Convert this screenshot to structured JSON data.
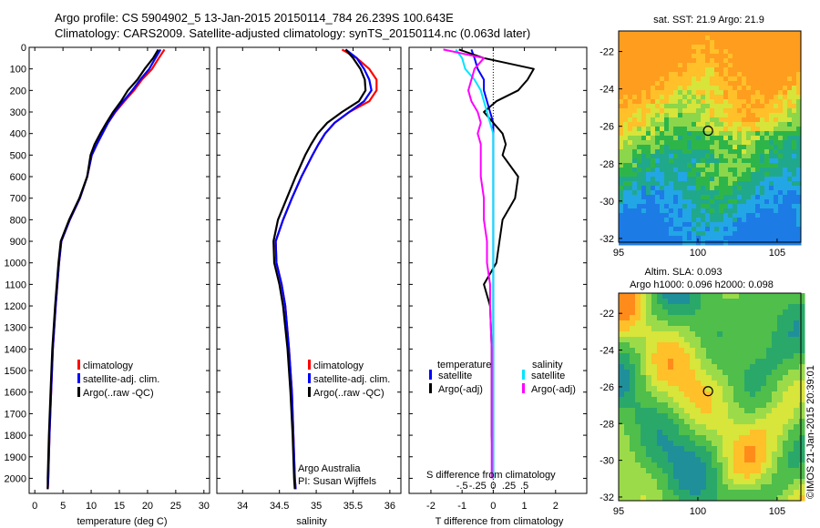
{
  "header": {
    "line1": "Argo profile: CS 5904902_5 13-Jan-2015 20150114_784 26.239S 100.643E",
    "line2": "Climatology: CARS2009. Satellite-adjusted climatology: synTS_20150114.nc (0.063d later)"
  },
  "colors": {
    "climatology": "#ff0000",
    "satellite": "#0000ff",
    "argo": "#000000",
    "sal_satellite": "#00e5ff",
    "sal_argo": "#ff00ff"
  },
  "panels": {
    "temperature": {
      "xlabel": "temperature (deg C)",
      "legend": [
        "climatology",
        "satellite-adj. clim.",
        "Argo(..raw -QC)"
      ]
    },
    "salinity": {
      "xlabel": "salinity",
      "legend": [
        "climatology",
        "satellite-adj. clim.",
        "Argo(..raw -QC)"
      ],
      "credit1": "Argo Australia",
      "credit2": "PI: Susan Wijffels"
    },
    "difference": {
      "xlabel": "T difference from climatology",
      "top_axis_title": "S difference from climatology",
      "legend_temp_title": "temperature",
      "legend_sal_title": "salinity",
      "legend_temp": [
        "satellite",
        "Argo(-adj)"
      ],
      "legend_sal": [
        "satellite",
        "Argo(-adj)"
      ]
    },
    "sst_map": {
      "title": "sat. SST: 21.9 Argo: 21.9"
    },
    "sla_map": {
      "title1": "Altim. SLA: 0.093",
      "title2": "Argo h1000: 0.096 h2000: 0.098"
    },
    "side_stamp": "©IMOS 21-Jan-2015 20:39:01"
  },
  "chart_data": [
    {
      "type": "line",
      "name": "temperature profile",
      "xlabel": "temperature (deg C)",
      "ylabel": "",
      "xlim": [
        -1,
        31
      ],
      "ylim": [
        2070,
        0
      ],
      "xticks": [
        0,
        5,
        10,
        15,
        20,
        25,
        30
      ],
      "yticks": [
        0,
        100,
        200,
        300,
        400,
        500,
        600,
        700,
        800,
        900,
        1000,
        1100,
        1200,
        1300,
        1400,
        1500,
        1600,
        1700,
        1800,
        1900,
        2000
      ],
      "depth": [
        10,
        50,
        100,
        150,
        200,
        250,
        300,
        350,
        400,
        450,
        500,
        600,
        700,
        800,
        900,
        1000,
        1200,
        1400,
        1600,
        1800,
        2000,
        2050
      ],
      "series": [
        {
          "name": "climatology",
          "color": "#ff0000",
          "x": [
            23.0,
            22.0,
            20.8,
            19.0,
            17.6,
            15.9,
            14.3,
            13.0,
            12.0,
            11.0,
            10.1,
            9.3,
            8.0,
            6.2,
            4.7,
            4.3,
            3.7,
            3.2,
            2.9,
            2.6,
            2.4,
            2.3
          ]
        },
        {
          "name": "satellite-adj. clim.",
          "color": "#0000ff",
          "x": [
            22.3,
            21.4,
            20.3,
            18.7,
            17.3,
            15.7,
            14.2,
            13.0,
            12.0,
            11.0,
            10.1,
            9.3,
            8.0,
            6.2,
            4.7,
            4.3,
            3.7,
            3.2,
            2.9,
            2.6,
            2.4,
            2.3
          ]
        },
        {
          "name": "Argo(..raw -QC)",
          "color": "#000000",
          "x": [
            21.9,
            21.0,
            19.5,
            18.2,
            16.5,
            15.3,
            13.9,
            12.7,
            11.6,
            10.6,
            9.9,
            9.3,
            7.9,
            6.1,
            4.6,
            4.2,
            3.6,
            3.1,
            2.8,
            2.5,
            2.3,
            2.3
          ]
        }
      ]
    },
    {
      "type": "line",
      "name": "salinity profile",
      "xlabel": "salinity",
      "ylabel": "",
      "xlim": [
        33.65,
        36.15
      ],
      "ylim": [
        2070,
        0
      ],
      "xticks": [
        34,
        34.5,
        35,
        35.5,
        36
      ],
      "depth": [
        10,
        50,
        100,
        150,
        200,
        250,
        300,
        350,
        400,
        450,
        500,
        600,
        700,
        800,
        900,
        1000,
        1100,
        1200,
        1400,
        1600,
        1800,
        2000,
        2050
      ],
      "series": [
        {
          "name": "climatology",
          "color": "#ff0000",
          "x": [
            35.35,
            35.55,
            35.72,
            35.82,
            35.82,
            35.72,
            35.45,
            35.25,
            35.12,
            35.03,
            34.95,
            34.8,
            34.67,
            34.55,
            34.45,
            34.46,
            34.53,
            34.58,
            34.63,
            34.67,
            34.69,
            34.71,
            34.72
          ]
        },
        {
          "name": "satellite-adj. clim.",
          "color": "#0000ff",
          "x": [
            35.4,
            35.55,
            35.65,
            35.72,
            35.75,
            35.65,
            35.45,
            35.25,
            35.12,
            35.03,
            34.95,
            34.8,
            34.67,
            34.55,
            34.45,
            34.46,
            34.53,
            34.58,
            34.63,
            34.67,
            34.69,
            34.71,
            34.72
          ]
        },
        {
          "name": "Argo(..raw -QC)",
          "color": "#000000",
          "x": [
            35.4,
            35.5,
            35.6,
            35.66,
            35.67,
            35.58,
            35.35,
            35.15,
            35.02,
            34.93,
            34.85,
            34.72,
            34.6,
            34.48,
            34.42,
            34.43,
            34.5,
            34.55,
            34.61,
            34.65,
            34.68,
            34.7,
            34.71
          ]
        }
      ]
    },
    {
      "type": "line",
      "name": "difference from climatology",
      "xlabel": "T difference from climatology",
      "top_axis_label": "S difference from climatology",
      "xlim": [
        -2.7,
        3.0
      ],
      "ylim": [
        2070,
        0
      ],
      "xticks": [
        -2,
        -1,
        0,
        1,
        2
      ],
      "top_ticks": [
        -0.5,
        -0.25,
        0,
        0.25,
        0.5
      ],
      "depth": [
        10,
        50,
        100,
        150,
        200,
        250,
        300,
        350,
        400,
        450,
        500,
        600,
        700,
        800,
        900,
        1000,
        1100,
        1200,
        1400,
        1600,
        1800,
        2000
      ],
      "series": [
        {
          "name": "temperature satellite",
          "color": "#0000ff",
          "x": [
            -0.7,
            -0.6,
            -0.5,
            -0.3,
            -0.3,
            -0.2,
            -0.1,
            0.0,
            0.0,
            0.0,
            0.0,
            0.0,
            0.0,
            0.0,
            0.0,
            0.0,
            0.0,
            0.0,
            0.0,
            0.0,
            0.0,
            0.0
          ]
        },
        {
          "name": "temperature Argo(-adj)",
          "color": "#000000",
          "x": [
            -1.1,
            -0.3,
            1.3,
            1.1,
            0.8,
            0.1,
            -0.3,
            0.0,
            0.3,
            0.4,
            0.3,
            0.8,
            0.7,
            0.3,
            0.2,
            0.1,
            -0.3,
            -0.1,
            -0.05,
            -0.05,
            -0.05,
            0.0
          ]
        },
        {
          "name": "salinity satellite",
          "color": "#00e5ff",
          "x": [
            -1.2,
            -1.0,
            -0.9,
            -0.6,
            -0.4,
            -0.3,
            -0.2,
            -0.1,
            0.0,
            0.0,
            0.0,
            0.0,
            0.0,
            0.0,
            0.0,
            0.0,
            0.0,
            0.0,
            0.0,
            0.0,
            0.0,
            0.0
          ]
        },
        {
          "name": "salinity Argo(-adj)",
          "color": "#ff00ff",
          "x": [
            -1.6,
            -0.3,
            -0.6,
            -0.7,
            -0.8,
            -0.7,
            -0.5,
            -0.4,
            -0.5,
            -0.4,
            -0.4,
            -0.4,
            -0.3,
            -0.3,
            -0.2,
            -0.2,
            -0.1,
            -0.1,
            -0.05,
            -0.05,
            -0.05,
            -0.05
          ]
        }
      ]
    },
    {
      "type": "heatmap",
      "name": "sat. SST map",
      "title": "sat. SST: 21.9 Argo: 21.9",
      "xlim": [
        95,
        106.5
      ],
      "ylim": [
        -32.2,
        -20.9
      ],
      "xticks": [
        95,
        100,
        105
      ],
      "yticks": [
        -22,
        -24,
        -26,
        -28,
        -30,
        -32
      ],
      "argo_position": {
        "lon": 100.643,
        "lat": -26.239
      }
    },
    {
      "type": "heatmap",
      "name": "altimetry SLA map",
      "title": "Altim. SLA: 0.093 / Argo h1000: 0.096 h2000: 0.098",
      "xlim": [
        95,
        106.5
      ],
      "ylim": [
        -32.2,
        -20.9
      ],
      "xticks": [
        95,
        100,
        105
      ],
      "yticks": [
        -22,
        -24,
        -26,
        -28,
        -30,
        -32
      ],
      "argo_position": {
        "lon": 100.643,
        "lat": -26.239
      }
    }
  ]
}
